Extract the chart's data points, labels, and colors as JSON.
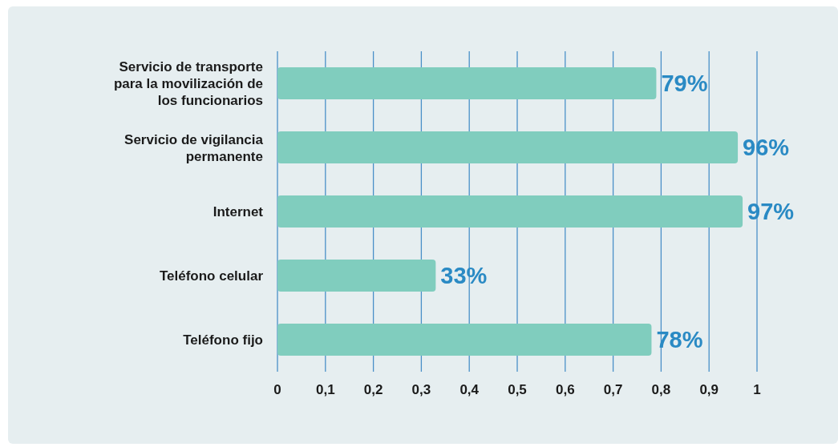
{
  "chart_data": {
    "type": "bar",
    "orientation": "horizontal",
    "categories": [
      "Servicio de transporte para la movilización de los funcionarios",
      "Servicio de vigilancia permanente",
      "Internet",
      "Teléfono celular",
      "Teléfono fijo"
    ],
    "values": [
      0.79,
      0.96,
      0.97,
      0.33,
      0.78
    ],
    "value_labels": [
      "79%",
      "96%",
      "97%",
      "33%",
      "78%"
    ],
    "color": "#80cdbe",
    "xlim": [
      0,
      1
    ],
    "xticks": [
      0,
      {
        "value": 0.1,
        "label": "0,1"
      },
      {
        "value": 0.2,
        "label": "0,2"
      },
      {
        "value": 0.3,
        "label": "0,3"
      },
      {
        "value": 0.4,
        "label": "0,4"
      },
      {
        "value": 0.5,
        "label": "0,5"
      },
      {
        "value": 0.6,
        "label": "0,6"
      },
      {
        "value": 0.7,
        "label": "0,7"
      },
      {
        "value": 0.8,
        "label": "0,8"
      },
      {
        "value": 0.9,
        "label": "0,9"
      },
      1
    ],
    "grid": "x",
    "legend": false
  }
}
